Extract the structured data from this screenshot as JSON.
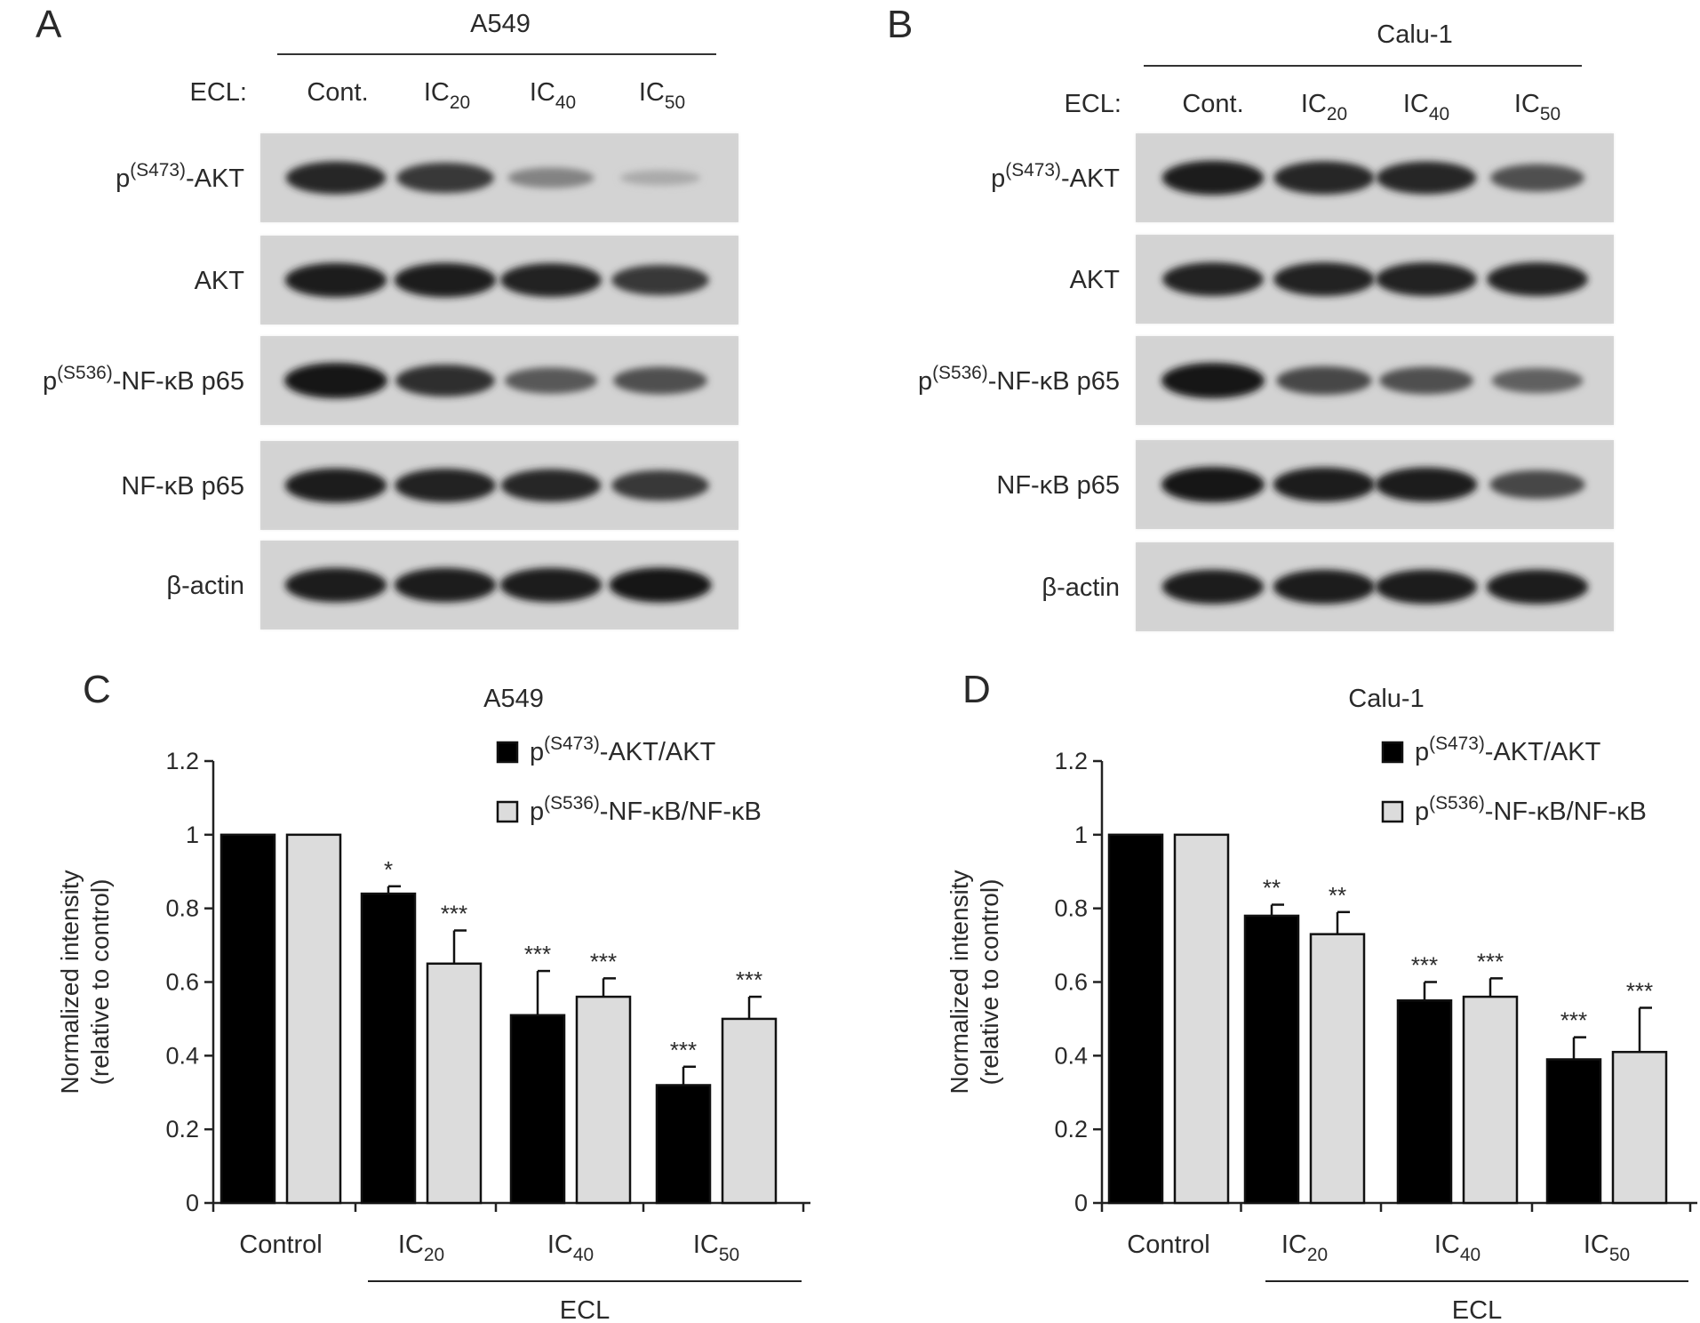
{
  "blots": [
    {
      "panel": "A",
      "cell_line": "A549",
      "ecl_label": "ECL:",
      "lanes": [
        {
          "base": "Cont.",
          "sub": ""
        },
        {
          "base": "IC",
          "sub": "20"
        },
        {
          "base": "IC",
          "sub": "40"
        },
        {
          "base": "IC",
          "sub": "50"
        }
      ],
      "rows": [
        {
          "pre": "p",
          "sup": "(S473)",
          "post": "-AKT",
          "intensity": [
            0.88,
            0.78,
            0.35,
            0.12
          ]
        },
        {
          "pre": "",
          "sup": "",
          "post": "AKT",
          "intensity": [
            0.95,
            0.95,
            0.92,
            0.78
          ]
        },
        {
          "pre": "p",
          "sup": "(S536)",
          "post": "-NF-κB p65",
          "intensity": [
            1.0,
            0.85,
            0.6,
            0.65
          ]
        },
        {
          "pre": "",
          "sup": "",
          "post": "NF-κB p65",
          "intensity": [
            0.95,
            0.92,
            0.88,
            0.78
          ]
        },
        {
          "pre": "",
          "sup": "",
          "post": "β-actin",
          "intensity": [
            0.95,
            0.95,
            0.95,
            0.97
          ]
        }
      ]
    },
    {
      "panel": "B",
      "cell_line": "Calu-1",
      "ecl_label": "ECL:",
      "lanes": [
        {
          "base": "Cont.",
          "sub": ""
        },
        {
          "base": "IC",
          "sub": "20"
        },
        {
          "base": "IC",
          "sub": "40"
        },
        {
          "base": "IC",
          "sub": "50"
        }
      ],
      "rows": [
        {
          "pre": "p",
          "sup": "(S473)",
          "post": "-AKT",
          "intensity": [
            0.95,
            0.9,
            0.88,
            0.65
          ]
        },
        {
          "pre": "",
          "sup": "",
          "post": "AKT",
          "intensity": [
            0.92,
            0.92,
            0.92,
            0.92
          ]
        },
        {
          "pre": "p",
          "sup": "(S536)",
          "post": "-NF-κB p65",
          "intensity": [
            1.0,
            0.7,
            0.65,
            0.55
          ]
        },
        {
          "pre": "",
          "sup": "",
          "post": "NF-κB p65",
          "intensity": [
            1.0,
            0.95,
            0.95,
            0.7
          ]
        },
        {
          "pre": "",
          "sup": "",
          "post": "β-actin",
          "intensity": [
            0.95,
            0.95,
            0.95,
            0.95
          ]
        }
      ]
    }
  ],
  "chart_data": [
    {
      "panel": "C",
      "type": "bar",
      "title": "A549",
      "ylabel_line1": "Normalized intensity",
      "ylabel_line2": "(relative to control)",
      "ylim": [
        0,
        1.2
      ],
      "yticks": [
        "0",
        "0.2",
        "0.4",
        "0.6",
        "0.8",
        "1",
        "1.2"
      ],
      "categories": [
        {
          "base": "Control",
          "sub": ""
        },
        {
          "base": "IC",
          "sub": "20"
        },
        {
          "base": "IC",
          "sub": "40"
        },
        {
          "base": "IC",
          "sub": "50"
        }
      ],
      "group_label": "ECL",
      "series": [
        {
          "legend_pre": "p",
          "legend_sup": "(S473)",
          "legend_post": "-AKT/AKT",
          "color": "#000000",
          "values": [
            1,
            0.84,
            0.51,
            0.32
          ],
          "errors": [
            0,
            0.02,
            0.12,
            0.05
          ],
          "stars": [
            "",
            "*",
            "***",
            "***"
          ]
        },
        {
          "legend_pre": "p",
          "legend_sup": "(S536)",
          "legend_post": "-NF-κB/NF-κB",
          "color": "#dcdcdc",
          "values": [
            1,
            0.65,
            0.56,
            0.5
          ],
          "errors": [
            0,
            0.09,
            0.05,
            0.06
          ],
          "stars": [
            "",
            "***",
            "***",
            "***"
          ]
        }
      ]
    },
    {
      "panel": "D",
      "type": "bar",
      "title": "Calu-1",
      "ylabel_line1": "Normalized intensity",
      "ylabel_line2": "(relative to control)",
      "ylim": [
        0,
        1.2
      ],
      "yticks": [
        "0",
        "0.2",
        "0.4",
        "0.6",
        "0.8",
        "1",
        "1.2"
      ],
      "categories": [
        {
          "base": "Control",
          "sub": ""
        },
        {
          "base": "IC",
          "sub": "20"
        },
        {
          "base": "IC",
          "sub": "40"
        },
        {
          "base": "IC",
          "sub": "50"
        }
      ],
      "group_label": "ECL",
      "series": [
        {
          "legend_pre": "p",
          "legend_sup": "(S473)",
          "legend_post": "-AKT/AKT",
          "color": "#000000",
          "values": [
            1,
            0.78,
            0.55,
            0.39
          ],
          "errors": [
            0,
            0.03,
            0.05,
            0.06
          ],
          "stars": [
            "",
            "**",
            "***",
            "***"
          ]
        },
        {
          "legend_pre": "p",
          "legend_sup": "(S536)",
          "legend_post": "-NF-κB/NF-κB",
          "color": "#dcdcdc",
          "values": [
            1,
            0.73,
            0.56,
            0.41
          ],
          "errors": [
            0,
            0.06,
            0.05,
            0.12
          ],
          "stars": [
            "",
            "**",
            "***",
            "***"
          ]
        }
      ]
    }
  ]
}
